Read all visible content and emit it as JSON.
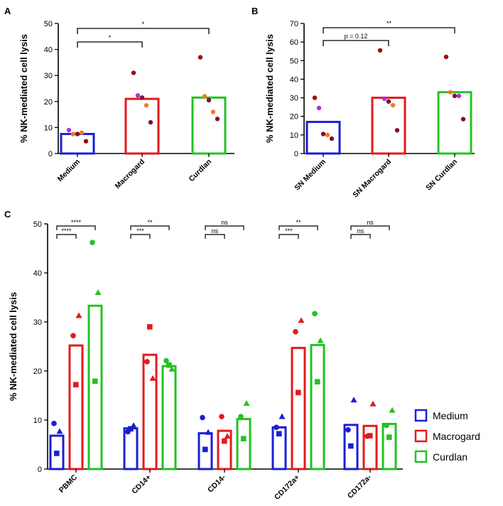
{
  "colors": {
    "medium": "#1a1fd6",
    "macrogard": "#e41a1c",
    "curdlan": "#22c322",
    "donor_purple": "#b030d6",
    "donor_orange": "#f07c1e",
    "donor_darkred": "#9b0e0e",
    "donor_maroon": "#7a1530",
    "axis": "#000000"
  },
  "chart_data": [
    {
      "panel": "A",
      "type": "bar",
      "ylabel": "% NK-mediated cell lysis",
      "ylim": [
        0,
        50
      ],
      "yticks": [
        0,
        10,
        20,
        30,
        40,
        50
      ],
      "categories": [
        "Medium",
        "Macrogard",
        "Curdlan"
      ],
      "values": [
        7.5,
        21,
        21.5
      ],
      "points": [
        [
          {
            "y": 9,
            "c": "donor_purple"
          },
          {
            "y": 7.5,
            "c": "donor_orange"
          },
          {
            "y": 7.5,
            "c": "donor_maroon"
          },
          {
            "y": 8,
            "c": "donor_orange"
          },
          {
            "y": 4.7,
            "c": "donor_darkred"
          }
        ],
        [
          {
            "y": 31,
            "c": "donor_darkred"
          },
          {
            "y": 22.3,
            "c": "donor_purple"
          },
          {
            "y": 21.5,
            "c": "donor_maroon"
          },
          {
            "y": 18.5,
            "c": "donor_orange"
          },
          {
            "y": 12,
            "c": "donor_maroon"
          }
        ],
        [
          {
            "y": 37,
            "c": "donor_darkred"
          },
          {
            "y": 22,
            "c": "donor_orange"
          },
          {
            "y": 20.5,
            "c": "donor_maroon"
          },
          {
            "y": 16,
            "c": "donor_orange"
          },
          {
            "y": 13.3,
            "c": "donor_maroon"
          }
        ]
      ],
      "comparisons": [
        {
          "from": 0,
          "to": 1,
          "label": "*"
        },
        {
          "from": 0,
          "to": 2,
          "label": "*"
        }
      ]
    },
    {
      "panel": "B",
      "type": "bar",
      "ylabel": "% NK-mediated cell lysis",
      "ylim": [
        0,
        70
      ],
      "yticks": [
        0,
        10,
        20,
        30,
        40,
        50,
        60,
        70
      ],
      "categories": [
        "SN Medium",
        "SN Macrogard",
        "SN Curdlan"
      ],
      "values": [
        17,
        30,
        33
      ],
      "points": [
        [
          {
            "y": 30,
            "c": "donor_darkred"
          },
          {
            "y": 24.5,
            "c": "donor_purple"
          },
          {
            "y": 10.5,
            "c": "donor_maroon"
          },
          {
            "y": 10,
            "c": "donor_orange"
          },
          {
            "y": 8,
            "c": "donor_maroon"
          }
        ],
        [
          {
            "y": 55.5,
            "c": "donor_darkred"
          },
          {
            "y": 29.5,
            "c": "donor_purple"
          },
          {
            "y": 28,
            "c": "donor_maroon"
          },
          {
            "y": 26,
            "c": "donor_orange"
          },
          {
            "y": 12.5,
            "c": "donor_maroon"
          }
        ],
        [
          {
            "y": 52,
            "c": "donor_darkred"
          },
          {
            "y": 33,
            "c": "donor_orange"
          },
          {
            "y": 31,
            "c": "donor_maroon"
          },
          {
            "y": 31,
            "c": "donor_purple"
          },
          {
            "y": 18.5,
            "c": "donor_maroon"
          }
        ]
      ],
      "comparisons": [
        {
          "from": 0,
          "to": 1,
          "label": "p = 0.12"
        },
        {
          "from": 0,
          "to": 2,
          "label": "**"
        }
      ]
    },
    {
      "panel": "C",
      "type": "bar",
      "ylabel": "% NK-mediated cell lysis",
      "ylim": [
        0,
        50
      ],
      "yticks": [
        0,
        10,
        20,
        30,
        40,
        50
      ],
      "categories": [
        "PBMC",
        "CD14+",
        "CD14-",
        "CD172a+",
        "CD172a-"
      ],
      "series": [
        {
          "name": "Medium",
          "color_key": "medium",
          "values": [
            6.8,
            8.3,
            7.3,
            8.5,
            9.0
          ]
        },
        {
          "name": "Macrogard",
          "color_key": "macrogard",
          "values": [
            25.2,
            23.3,
            7.8,
            24.7,
            8.8
          ]
        },
        {
          "name": "Curdlan",
          "color_key": "curdlan",
          "values": [
            33.3,
            21.0,
            10.2,
            25.3,
            9.2
          ]
        }
      ],
      "points": [
        [
          [
            {
              "y": 9.3,
              "m": "circle"
            },
            {
              "y": 7.7,
              "m": "triangle"
            },
            {
              "y": 3.2,
              "m": "square"
            }
          ],
          [
            {
              "y": 31.3,
              "m": "triangle"
            },
            {
              "y": 27.2,
              "m": "circle"
            },
            {
              "y": 17.2,
              "m": "square"
            }
          ],
          [
            {
              "y": 46.2,
              "m": "circle"
            },
            {
              "y": 36.0,
              "m": "triangle"
            },
            {
              "y": 17.9,
              "m": "square"
            }
          ]
        ],
        [
          [
            {
              "y": 8.9,
              "m": "triangle"
            },
            {
              "y": 8.2,
              "m": "square"
            },
            {
              "y": 7.6,
              "m": "circle"
            }
          ],
          [
            {
              "y": 29.0,
              "m": "square"
            },
            {
              "y": 21.9,
              "m": "circle"
            },
            {
              "y": 18.5,
              "m": "triangle"
            }
          ],
          [
            {
              "y": 22.1,
              "m": "circle"
            },
            {
              "y": 21.2,
              "m": "square"
            },
            {
              "y": 20.4,
              "m": "triangle"
            }
          ]
        ],
        [
          [
            {
              "y": 10.5,
              "m": "circle"
            },
            {
              "y": 7.5,
              "m": "triangle"
            },
            {
              "y": 4.0,
              "m": "square"
            }
          ],
          [
            {
              "y": 10.7,
              "m": "circle"
            },
            {
              "y": 6.7,
              "m": "triangle"
            },
            {
              "y": 5.7,
              "m": "square"
            }
          ],
          [
            {
              "y": 13.4,
              "m": "triangle"
            },
            {
              "y": 10.7,
              "m": "circle"
            },
            {
              "y": 6.2,
              "m": "square"
            }
          ]
        ],
        [
          [
            {
              "y": 10.7,
              "m": "triangle"
            },
            {
              "y": 8.5,
              "m": "circle"
            },
            {
              "y": 7.2,
              "m": "square"
            }
          ],
          [
            {
              "y": 30.3,
              "m": "triangle"
            },
            {
              "y": 28.0,
              "m": "circle"
            },
            {
              "y": 15.6,
              "m": "square"
            }
          ],
          [
            {
              "y": 31.7,
              "m": "circle"
            },
            {
              "y": 26.2,
              "m": "triangle"
            },
            {
              "y": 17.8,
              "m": "square"
            }
          ]
        ],
        [
          [
            {
              "y": 14.1,
              "m": "triangle"
            },
            {
              "y": 8.0,
              "m": "circle"
            },
            {
              "y": 4.7,
              "m": "square"
            }
          ],
          [
            {
              "y": 13.3,
              "m": "triangle"
            },
            {
              "y": 6.8,
              "m": "square"
            },
            {
              "y": 6.7,
              "m": "circle"
            }
          ],
          [
            {
              "y": 12.0,
              "m": "triangle"
            },
            {
              "y": 8.9,
              "m": "circle"
            },
            {
              "y": 6.5,
              "m": "square"
            }
          ]
        ]
      ],
      "comparisons": [
        {
          "group": 0,
          "to": 1,
          "label": "****"
        },
        {
          "group": 0,
          "to": 2,
          "label": "****"
        },
        {
          "group": 1,
          "to": 1,
          "label": "***"
        },
        {
          "group": 1,
          "to": 2,
          "label": "**"
        },
        {
          "group": 2,
          "to": 1,
          "label": "ns"
        },
        {
          "group": 2,
          "to": 2,
          "label": "ns"
        },
        {
          "group": 3,
          "to": 1,
          "label": "***"
        },
        {
          "group": 3,
          "to": 2,
          "label": "**"
        },
        {
          "group": 4,
          "to": 1,
          "label": "ns"
        },
        {
          "group": 4,
          "to": 2,
          "label": "ns"
        }
      ],
      "legend": [
        {
          "label": "Medium",
          "color_key": "medium"
        },
        {
          "label": "Macrogard",
          "color_key": "macrogard"
        },
        {
          "label": "Curdlan",
          "color_key": "curdlan"
        }
      ]
    }
  ]
}
